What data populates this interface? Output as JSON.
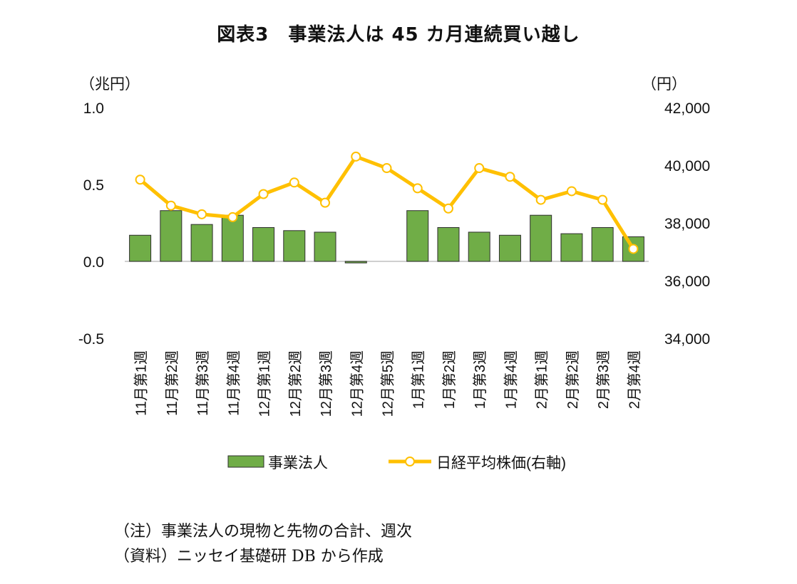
{
  "chart_data": {
    "type": "bar",
    "title": "図表3　事業法人は 45 カ月連続買い越し",
    "categories": [
      "11月第1週",
      "11月第2週",
      "11月第3週",
      "11月第4週",
      "12月第1週",
      "12月第2週",
      "12月第3週",
      "12月第4週",
      "12月第5週",
      "1月第1週",
      "1月第2週",
      "1月第3週",
      "1月第4週",
      "2月第1週",
      "2月第2週",
      "2月第3週",
      "2月第4週"
    ],
    "y_left": {
      "unit": "（兆円）",
      "range": [
        -0.5,
        1.0
      ],
      "ticks": [
        "1.0",
        "0.5",
        "0.0",
        "-0.5"
      ],
      "tick_values": [
        1.0,
        0.5,
        0.0,
        -0.5
      ]
    },
    "y_right": {
      "unit": "（円）",
      "range": [
        34000,
        42000
      ],
      "ticks": [
        "42,000",
        "40,000",
        "38,000",
        "36,000",
        "34,000"
      ],
      "tick_values": [
        42000,
        40000,
        38000,
        36000,
        34000
      ]
    },
    "series": [
      {
        "name": "事業法人",
        "type": "bar",
        "axis": "left",
        "color": "#70ad47",
        "values": [
          0.17,
          0.33,
          0.24,
          0.3,
          0.22,
          0.2,
          0.19,
          -0.01,
          0.0,
          0.33,
          0.22,
          0.19,
          0.17,
          0.3,
          0.18,
          0.22,
          0.16
        ]
      },
      {
        "name": "日経平均株価(右軸)",
        "type": "line",
        "axis": "right",
        "color": "#ffc000",
        "values": [
          39500,
          38600,
          38300,
          38200,
          39000,
          39400,
          38700,
          40300,
          39900,
          39200,
          38500,
          39900,
          39600,
          38800,
          39100,
          38800,
          37100
        ]
      }
    ],
    "grid": false,
    "legend": "bottom"
  },
  "notes": {
    "note1": "（注）事業法人の現物と先物の合計、週次",
    "note2": "（資料）ニッセイ基礎研 DB から作成"
  }
}
